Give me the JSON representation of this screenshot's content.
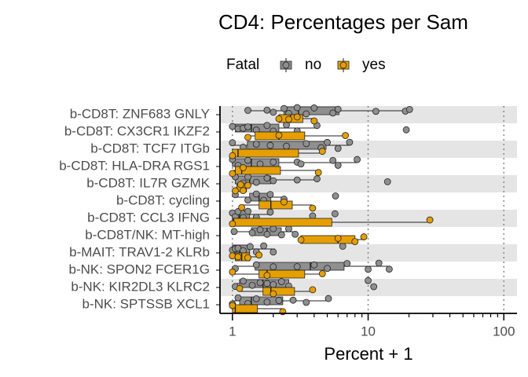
{
  "chart_data": {
    "type": "boxplot",
    "title": "CD4: Percentages per Sam",
    "xlabel": "Percent + 1",
    "legend_title": "Fatal",
    "xscale": "log",
    "grid": true,
    "xlim": [
      0.81,
      125
    ],
    "xticks": [
      1,
      10,
      100
    ],
    "xminorticks": [
      2,
      3,
      4,
      5,
      6,
      7,
      8,
      9,
      20,
      30,
      40,
      50,
      60,
      70,
      80,
      90
    ],
    "categories": [
      "b-CD8T: ZNF683 GNLY",
      "b-CD8T: CX3CR1 IKZF2",
      "b-CD8T: TCF7 ITGb",
      "b-CD8T: HLA-DRA RGS1",
      "b-CD8T: IL7R GZMK",
      "b-CD8T: cycling",
      "b-CD8T: CCL3 IFNG",
      "b-CD8T/NK: MT-high",
      "b-MAIT: TRAV1-2 KLRb",
      "b-NK: SPON2 FCER1G",
      "b-NK: KIR2DL3 KLRC2",
      "b-NK: SPTSSB XCL1"
    ],
    "series": [
      {
        "name": "no",
        "color": "#8f8f8f",
        "boxes": [
          {
            "whislo": 1.3,
            "q1": 2.4,
            "med": 3.07,
            "q3": 6.1,
            "whishi": 20,
            "points": [
              1.3,
              1.8,
              2.0,
              2.4,
              2.6,
              3.0,
              3.5,
              4.0,
              5.5,
              6.0,
              11.4,
              18.8,
              20.2
            ]
          },
          {
            "whislo": 1.0,
            "q1": 1.05,
            "med": 1.38,
            "q3": 2.2,
            "whishi": 4.2,
            "points": [
              1.0,
              1.1,
              1.2,
              1.3,
              1.5,
              1.8,
              2.0,
              2.5,
              3.0,
              4.2,
              19.1
            ]
          },
          {
            "whislo": 1.0,
            "q1": 1.29,
            "med": 1.92,
            "q3": 4.9,
            "whishi": 7.3,
            "points": [
              1.0,
              1.2,
              1.5,
              1.9,
              2.5,
              3.5,
              4.5,
              5.0,
              6.0,
              7.3
            ]
          },
          {
            "whislo": 1.0,
            "q1": 1.0,
            "med": 1.38,
            "q3": 2.2,
            "whishi": 8.3,
            "points": [
              1.0,
              1.1,
              1.3,
              1.6,
              2.0,
              3.0,
              3.2,
              5.5,
              6.0,
              8.3
            ]
          },
          {
            "whislo": 1.05,
            "q1": 1.05,
            "med": 1.34,
            "q3": 1.92,
            "whishi": 4.2,
            "points": [
              1.05,
              1.2,
              1.3,
              1.5,
              1.8,
              2.0,
              3.0,
              4.2,
              13.9
            ]
          },
          {
            "whislo": 1.05,
            "q1": 1.34,
            "med": 1.57,
            "q3": 1.92,
            "whishi": 2.5,
            "points": [
              1.05,
              1.3,
              1.5,
              1.7,
              1.9,
              2.4,
              5.75
            ]
          },
          {
            "whislo": 1.0,
            "q1": 1.0,
            "med": 1.13,
            "q3": 1.34,
            "whishi": 1.92,
            "points": [
              1.0,
              1.05,
              1.1,
              1.2,
              1.3,
              1.5,
              1.9,
              3.9,
              5.7
            ]
          },
          {
            "whislo": 1.03,
            "q1": 1.38,
            "med": 1.8,
            "q3": 2.29,
            "whishi": 2.87,
            "points": [
              1.03,
              1.4,
              1.6,
              1.8,
              2.0,
              2.3,
              2.6,
              2.9
            ]
          },
          {
            "whislo": 1.0,
            "q1": 1.0,
            "med": 1.13,
            "q3": 1.34,
            "whishi": 2.06,
            "points": [
              1.0,
              1.05,
              1.1,
              1.2,
              1.35,
              1.5,
              1.7,
              2.0,
              6.5
            ]
          },
          {
            "whislo": 1.05,
            "q1": 1.47,
            "med": 3.75,
            "q3": 6.65,
            "whishi": 14.3,
            "points": [
              1.05,
              1.5,
              2.0,
              3.0,
              4.0,
              5.0,
              7.0,
              10,
              12,
              14.3
            ]
          },
          {
            "whislo": 1.03,
            "q1": 1.13,
            "med": 1.68,
            "q3": 2.6,
            "whishi": 2.7,
            "points": [
              1.05,
              1.2,
              1.4,
              1.6,
              1.8,
              2.0,
              2.3,
              2.6,
              10,
              11
            ]
          },
          {
            "whislo": 1.0,
            "q1": 1.13,
            "med": 1.38,
            "q3": 2.35,
            "whishi": 5.1,
            "points": [
              1.0,
              1.1,
              1.3,
              1.5,
              1.8,
              2.2,
              2.8,
              3.5,
              5.1
            ]
          }
        ]
      },
      {
        "name": "yes",
        "color": "#e69f00",
        "boxes": [
          {
            "whislo": 2.2,
            "q1": 2.2,
            "med": 2.68,
            "q3": 3.3,
            "whishi": 4.0,
            "points": [
              2.2,
              2.6,
              3.0,
              4.0
            ]
          },
          {
            "whislo": 1.29,
            "q1": 1.47,
            "med": 2.2,
            "q3": 3.41,
            "whishi": 6.8,
            "points": [
              1.3,
              2.2,
              6.8
            ]
          },
          {
            "whislo": 1.0,
            "q1": 1.0,
            "med": 1.1,
            "q3": 3.07,
            "whishi": 4.6,
            "points": [
              1.0,
              4.6
            ]
          },
          {
            "whislo": 1.0,
            "q1": 1.05,
            "med": 1.17,
            "q3": 2.26,
            "whishi": 4.3,
            "points": [
              1.0,
              1.2,
              4.3
            ]
          },
          {
            "whislo": 1.05,
            "q1": 1.08,
            "med": 1.17,
            "q3": 1.27,
            "whishi": 1.3,
            "points": [
              1.05,
              1.15,
              1.2,
              1.3
            ]
          },
          {
            "whislo": 1.17,
            "q1": 1.57,
            "med": 1.92,
            "q3": 2.76,
            "whishi": 3.9,
            "points": [
              1.17,
              2.4,
              3.9
            ]
          },
          {
            "whislo": 1.0,
            "q1": 1.0,
            "med": 1.02,
            "q3": 5.4,
            "whishi": 28.5,
            "points": [
              1.0,
              28.5
            ]
          },
          {
            "whislo": 3.19,
            "q1": 3.19,
            "med": 6.0,
            "q3": 8.0,
            "whishi": 9.3,
            "points": [
              3.2,
              6.0,
              8.0,
              9.3
            ]
          },
          {
            "whislo": 1.0,
            "q1": 1.05,
            "med": 1.17,
            "q3": 1.34,
            "whishi": 1.57,
            "points": [
              1.0,
              1.1,
              1.3,
              1.57
            ]
          },
          {
            "whislo": 1.0,
            "q1": 1.57,
            "med": 1.8,
            "q3": 3.41,
            "whishi": 4.6,
            "points": [
              1.0,
              1.8,
              4.6
            ]
          },
          {
            "whislo": 1.13,
            "q1": 1.68,
            "med": 1.92,
            "q3": 2.87,
            "whishi": 3.9,
            "points": [
              1.13,
              2.0,
              3.9
            ]
          },
          {
            "whislo": 1.0,
            "q1": 1.0,
            "med": 1.05,
            "q3": 1.53,
            "whishi": 2.35,
            "points": [
              1.0,
              2.35
            ]
          }
        ]
      }
    ]
  }
}
